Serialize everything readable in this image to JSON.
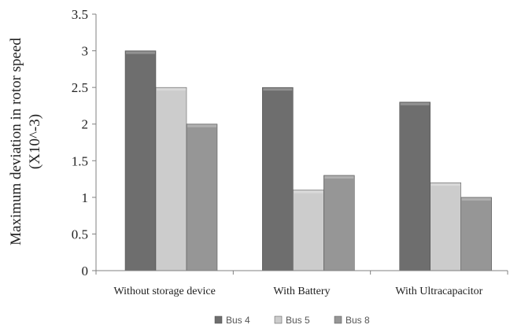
{
  "chart_data": {
    "type": "bar",
    "ylabel_lines": [
      "Maximum deviation in rotor speed",
      "(X10^-3)"
    ],
    "categories": [
      "Without storage device",
      "With Battery",
      "With Ultracapacitor"
    ],
    "series": [
      {
        "name": "Bus 4",
        "values": [
          3.0,
          2.5,
          2.3
        ]
      },
      {
        "name": "Bus 5",
        "values": [
          2.5,
          1.1,
          1.2
        ]
      },
      {
        "name": "Bus 8",
        "values": [
          2.0,
          1.3,
          1.0
        ]
      }
    ],
    "ylim": [
      0,
      3.5
    ],
    "yticks": [
      "0",
      "0.5",
      "1",
      "1.5",
      "2",
      "2.5",
      "3",
      "3.5"
    ],
    "grid": false,
    "legend_position": "bottom"
  },
  "colors": {
    "Bus 4": "#6e6e6e",
    "Bus 5": "#cccccc",
    "Bus 8": "#969696",
    "axis": "#808080"
  }
}
